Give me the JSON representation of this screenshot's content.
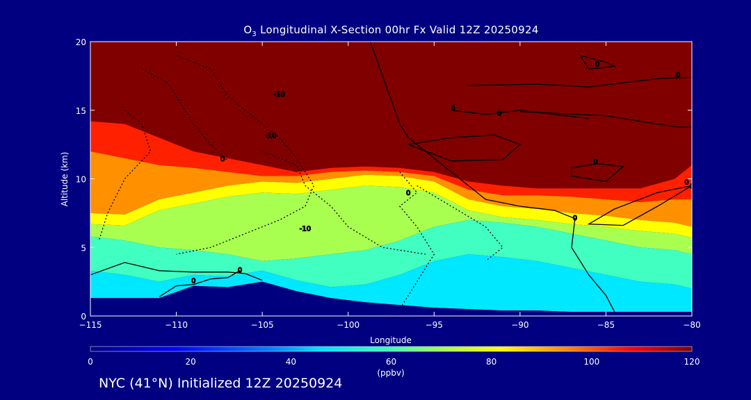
{
  "chart_data": {
    "type": "heatmap",
    "title_prefix": "O",
    "title_sub": "3",
    "title_rest": " Longitudinal X-Section 00hr  Fx Valid 12Z 20250924",
    "xlabel": "Longitude",
    "ylabel": "Altitude (km)",
    "xlim": [
      -115,
      -80
    ],
    "ylim": [
      0,
      20
    ],
    "x_ticks": [
      -115,
      -110,
      -105,
      -100,
      -95,
      -90,
      -85,
      -80
    ],
    "x_tick_labels": [
      "−115",
      "−110",
      "−105",
      "−100",
      "−95",
      "−90",
      "−85",
      "−80"
    ],
    "y_ticks": [
      0,
      5,
      10,
      15,
      20
    ],
    "y_tick_labels": [
      "0",
      "5",
      "10",
      "15",
      "20"
    ],
    "colorbar": {
      "min": 0,
      "max": 120,
      "ticks": [
        0,
        20,
        40,
        60,
        80,
        100,
        120
      ],
      "tick_labels": [
        "0",
        "20",
        "40",
        "60",
        "80",
        "100",
        "120"
      ],
      "unit": "(ppbv)"
    },
    "layers": {
      "longitudes": [
        -115,
        -113,
        -111,
        -109,
        -107,
        -105,
        -103,
        -101,
        -99,
        -97,
        -95,
        -93,
        -91,
        -89,
        -87,
        -85,
        -83,
        -81,
        -80
      ],
      "ground": [
        1.3,
        1.3,
        1.3,
        2.2,
        2.1,
        2.5,
        1.8,
        1.3,
        1.0,
        0.8,
        0.6,
        0.5,
        0.4,
        0.4,
        0.3,
        0.3,
        0.3,
        0.3,
        0.3
      ],
      "tropopause_red": [
        14.2,
        14.0,
        13.0,
        12.0,
        11.5,
        11.0,
        10.5,
        10.8,
        10.9,
        10.8,
        10.5,
        9.8,
        9.5,
        9.3,
        9.3,
        9.3,
        9.3,
        10.0,
        11.0
      ],
      "orange_top": [
        12.0,
        11.5,
        11.0,
        10.8,
        10.5,
        10.2,
        10.2,
        10.5,
        10.6,
        10.5,
        10.2,
        9.2,
        8.8,
        8.8,
        8.7,
        8.5,
        8.3,
        8.5,
        8.5
      ],
      "yellow_top": [
        7.5,
        7.4,
        8.5,
        9.0,
        9.5,
        9.8,
        9.7,
        10.0,
        10.3,
        10.2,
        9.8,
        8.5,
        8.0,
        7.8,
        7.5,
        7.3,
        7.0,
        6.8,
        6.5
      ],
      "green_top": [
        5.8,
        5.5,
        5.0,
        4.8,
        4.5,
        4.0,
        4.2,
        4.5,
        4.8,
        5.5,
        6.5,
        7.0,
        6.8,
        6.5,
        6.0,
        5.5,
        5.0,
        4.8,
        4.5
      ]
    },
    "contour_labels": [
      "-10",
      "-10",
      "-10",
      "0",
      "0",
      "0",
      "0",
      "0",
      "0",
      "0",
      "0",
      "0",
      "0",
      "0",
      "0"
    ]
  },
  "footer": "NYC (41°N) Initialized 12Z 20250924"
}
